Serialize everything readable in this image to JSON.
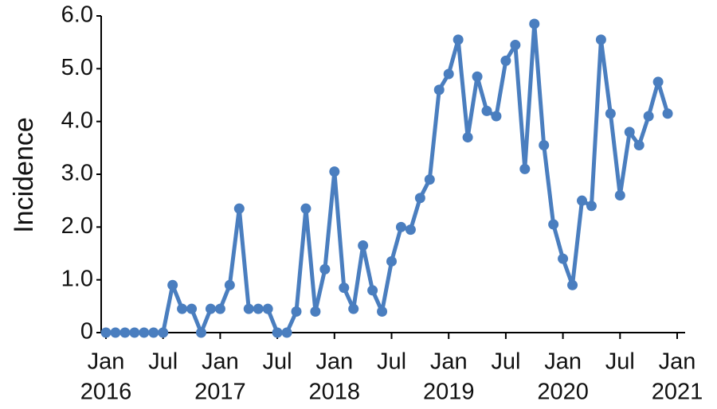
{
  "chart_data": {
    "type": "line",
    "y_label": "Incidence",
    "x": [
      "2016-01",
      "2016-02",
      "2016-03",
      "2016-04",
      "2016-05",
      "2016-06",
      "2016-07",
      "2016-08",
      "2016-09",
      "2016-10",
      "2016-11",
      "2016-12",
      "2017-01",
      "2017-02",
      "2017-03",
      "2017-04",
      "2017-05",
      "2017-06",
      "2017-07",
      "2017-08",
      "2017-09",
      "2017-10",
      "2017-11",
      "2017-12",
      "2018-01",
      "2018-02",
      "2018-03",
      "2018-04",
      "2018-05",
      "2018-06",
      "2018-07",
      "2018-08",
      "2018-09",
      "2018-10",
      "2018-11",
      "2018-12",
      "2019-01",
      "2019-02",
      "2019-03",
      "2019-04",
      "2019-05",
      "2019-06",
      "2019-07",
      "2019-08",
      "2019-09",
      "2019-10",
      "2019-11",
      "2019-12",
      "2020-01",
      "2020-02",
      "2020-03",
      "2020-04",
      "2020-05",
      "2020-06",
      "2020-07",
      "2020-08",
      "2020-09",
      "2020-10",
      "2020-11",
      "2020-12"
    ],
    "series": [
      {
        "color": "#4a7ebf",
        "values": [
          0,
          0,
          0,
          0,
          0,
          0,
          0,
          0.9,
          0.45,
          0.45,
          0,
          0.45,
          0.45,
          0.9,
          2.35,
          0.45,
          0.45,
          0.45,
          0,
          0,
          0.4,
          2.35,
          0.4,
          1.2,
          3.05,
          0.85,
          0.45,
          1.65,
          0.8,
          0.4,
          1.35,
          2.0,
          1.95,
          2.55,
          2.9,
          4.6,
          4.9,
          5.55,
          3.7,
          4.85,
          4.2,
          4.1,
          5.15,
          5.45,
          3.1,
          5.85,
          3.55,
          2.05,
          1.4,
          0.9,
          2.5,
          2.4,
          5.55,
          4.15,
          2.6,
          3.8,
          3.55,
          4.1,
          4.75,
          4.15
        ]
      }
    ],
    "xlim": [
      "2016-01",
      "2021-01"
    ],
    "xticks": [
      {
        "value": "2016-01",
        "label": "Jan",
        "year": "2016"
      },
      {
        "value": "2016-07",
        "label": "Jul"
      },
      {
        "value": "2017-01",
        "label": "Jan",
        "year": "2017"
      },
      {
        "value": "2017-07",
        "label": "Jul"
      },
      {
        "value": "2018-01",
        "label": "Jan",
        "year": "2018"
      },
      {
        "value": "2018-07",
        "label": "Jul"
      },
      {
        "value": "2019-01",
        "label": "Jan",
        "year": "2019"
      },
      {
        "value": "2019-07",
        "label": "Jul"
      },
      {
        "value": "2020-01",
        "label": "Jan",
        "year": "2020"
      },
      {
        "value": "2020-07",
        "label": "Jul"
      },
      {
        "value": "2021-01",
        "label": "Jan",
        "year": "2021"
      }
    ],
    "ylim": [
      0,
      6
    ],
    "yticks": [
      0,
      {
        "value": 1,
        "label": "1.0"
      },
      {
        "value": 2,
        "label": "2.0"
      },
      {
        "value": 3,
        "label": "3.0"
      },
      {
        "value": 4,
        "label": "4.0"
      },
      {
        "value": 5,
        "label": "5.0"
      },
      {
        "value": 6,
        "label": "6.0"
      }
    ],
    "grid": false
  }
}
